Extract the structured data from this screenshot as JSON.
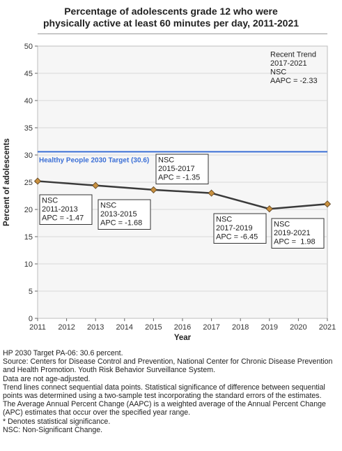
{
  "title_lines": [
    "Percentage of adolescents grade 12 who were",
    "physically active at least 60 minutes per day, 2011-2021"
  ],
  "chart_data": {
    "type": "line",
    "xlabel": "Year",
    "ylabel": "Percent of adolescents",
    "xlim": [
      2011,
      2021
    ],
    "ylim": [
      0,
      50
    ],
    "x_ticks": [
      2011,
      2012,
      2013,
      2014,
      2015,
      2016,
      2017,
      2018,
      2019,
      2020,
      2021
    ],
    "y_ticks": [
      0,
      5,
      10,
      15,
      20,
      25,
      30,
      35,
      40,
      45,
      50
    ],
    "grid": true,
    "series": [
      {
        "x": [
          2011,
          2013,
          2015,
          2017,
          2019,
          2021
        ],
        "values": [
          25.2,
          24.4,
          23.6,
          23.0,
          20.1,
          21.0
        ],
        "color": "#3a3a3a",
        "marker_color": "#c8903f"
      }
    ],
    "target": {
      "value": 30.6,
      "label": "Healthy People 2030 Target (30.6)",
      "color": "#3b6fd6"
    },
    "annotations": [
      {
        "lines": [
          "Recent Trend",
          "2017-2021",
          "NSC",
          "AAPC = -2.33"
        ],
        "boxed": false
      },
      {
        "lines": [
          "NSC",
          "2011-2013",
          "APC = -1.47"
        ],
        "boxed": true
      },
      {
        "lines": [
          "NSC",
          "2013-2015",
          "APC = -1.68"
        ],
        "boxed": true
      },
      {
        "lines": [
          "NSC",
          "2015-2017",
          "APC = -1.35"
        ],
        "boxed": true
      },
      {
        "lines": [
          "NSC",
          "2017-2019",
          "APC = -6.45"
        ],
        "boxed": true
      },
      {
        "lines": [
          "NSC",
          "2019-2021",
          "APC =  1.98"
        ],
        "boxed": true
      }
    ]
  },
  "notes": [
    "HP 2030 Target PA-06: 30.6 percent.",
    "Source: Centers for Disease Control and Prevention, National Center for Chronic Disease Prevention and Health Promotion. Youth Risk Behavior Surveillance System.",
    "Data are not age-adjusted.",
    "Trend lines connect sequential data points. Statistical significance of difference between sequential points was determined using a two-sample test incorporating the standard errors of the estimates.",
    "The Average Annual Percent Change (AAPC) is a weighted average of the Annual Percent Change (APC) estimates that occur over the specified year range.",
    "* Denotes statistical significance.",
    "NSC: Non-Significant Change."
  ]
}
